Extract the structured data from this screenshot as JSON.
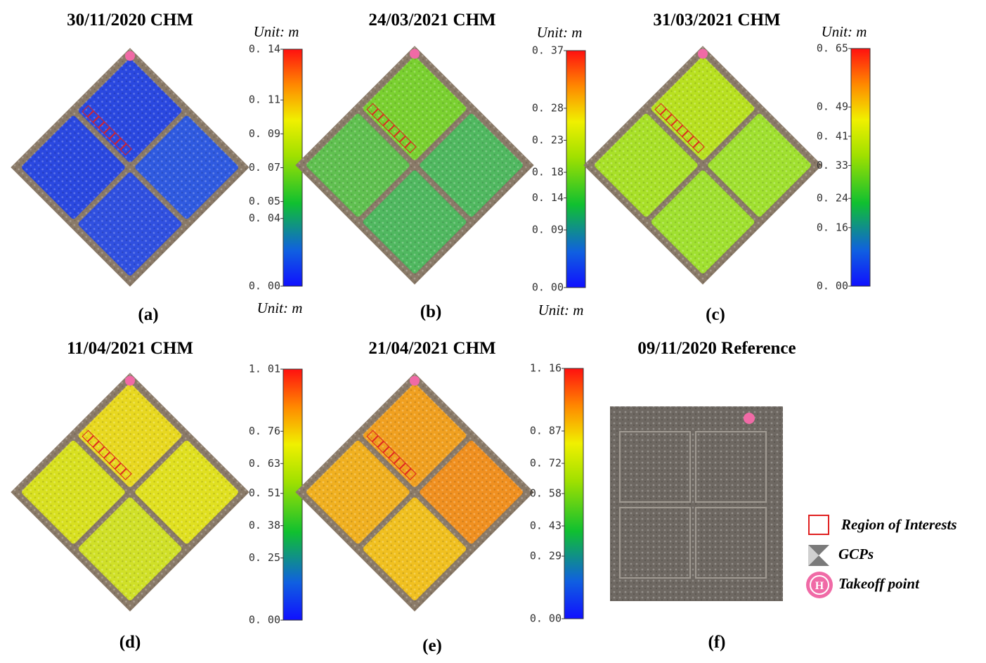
{
  "panels": [
    {
      "title": "30/11/2020 CHM",
      "unit": "Unit: m",
      "label": "(a)",
      "colorbar": {
        "range": [
          0,
          0.14
        ],
        "ticks": [
          {
            "value": 0.14,
            "label": "0. 14"
          },
          {
            "value": 0.11,
            "label": "0. 11"
          },
          {
            "value": 0.09,
            "label": "0. 09"
          },
          {
            "value": 0.07,
            "label": "0. 07"
          },
          {
            "value": 0.05,
            "label": "0. 05"
          },
          {
            "value": 0.04,
            "label": "0. 04"
          },
          {
            "value": 0,
            "label": "0. 00"
          }
        ]
      }
    },
    {
      "title": "24/03/2021 CHM",
      "unit": "Unit: m",
      "label": "(b)",
      "colorbar": {
        "range": [
          0,
          0.37
        ],
        "ticks": [
          {
            "value": 0.37,
            "label": "0. 37"
          },
          {
            "value": 0.28,
            "label": "0. 28"
          },
          {
            "value": 0.23,
            "label": "0. 23"
          },
          {
            "value": 0.18,
            "label": "0. 18"
          },
          {
            "value": 0.14,
            "label": "0. 14"
          },
          {
            "value": 0.09,
            "label": "0. 09"
          },
          {
            "value": 0,
            "label": "0. 00"
          }
        ]
      }
    },
    {
      "title": "31/03/2021 CHM",
      "unit": "Unit: m",
      "label": "(c)",
      "colorbar": {
        "range": [
          0,
          0.65
        ],
        "ticks": [
          {
            "value": 0.65,
            "label": "0. 65"
          },
          {
            "value": 0.49,
            "label": "0. 49"
          },
          {
            "value": 0.41,
            "label": "0. 41"
          },
          {
            "value": 0.33,
            "label": "0. 33"
          },
          {
            "value": 0.24,
            "label": "0. 24"
          },
          {
            "value": 0.16,
            "label": "0. 16"
          },
          {
            "value": 0,
            "label": "0. 00"
          }
        ]
      }
    },
    {
      "title": "11/04/2021 CHM",
      "unit": "Unit: m",
      "label": "(d)",
      "colorbar": {
        "range": [
          0,
          1.01
        ],
        "ticks": [
          {
            "value": 1.01,
            "label": "1. 01"
          },
          {
            "value": 0.76,
            "label": "0. 76"
          },
          {
            "value": 0.63,
            "label": "0. 63"
          },
          {
            "value": 0.51,
            "label": "0. 51"
          },
          {
            "value": 0.38,
            "label": "0. 38"
          },
          {
            "value": 0.25,
            "label": "0. 25"
          },
          {
            "value": 0,
            "label": "0. 00"
          }
        ]
      }
    },
    {
      "title": "21/04/2021 CHM",
      "unit": "Unit: m",
      "label": "(e)",
      "colorbar": {
        "range": [
          0,
          1.16
        ],
        "ticks": [
          {
            "value": 1.16,
            "label": "1. 16"
          },
          {
            "value": 0.87,
            "label": "0. 87"
          },
          {
            "value": 0.72,
            "label": "0. 72"
          },
          {
            "value": 0.58,
            "label": "0. 58"
          },
          {
            "value": 0.43,
            "label": "0. 43"
          },
          {
            "value": 0.29,
            "label": "0. 29"
          },
          {
            "value": 0,
            "label": "0. 00"
          }
        ]
      }
    },
    {
      "title": "09/11/2020 Reference",
      "label": "(f)"
    }
  ],
  "legend": {
    "roi": "Region of Interests",
    "gcp": "GCPs",
    "takeoff": "Takeoff point"
  }
}
